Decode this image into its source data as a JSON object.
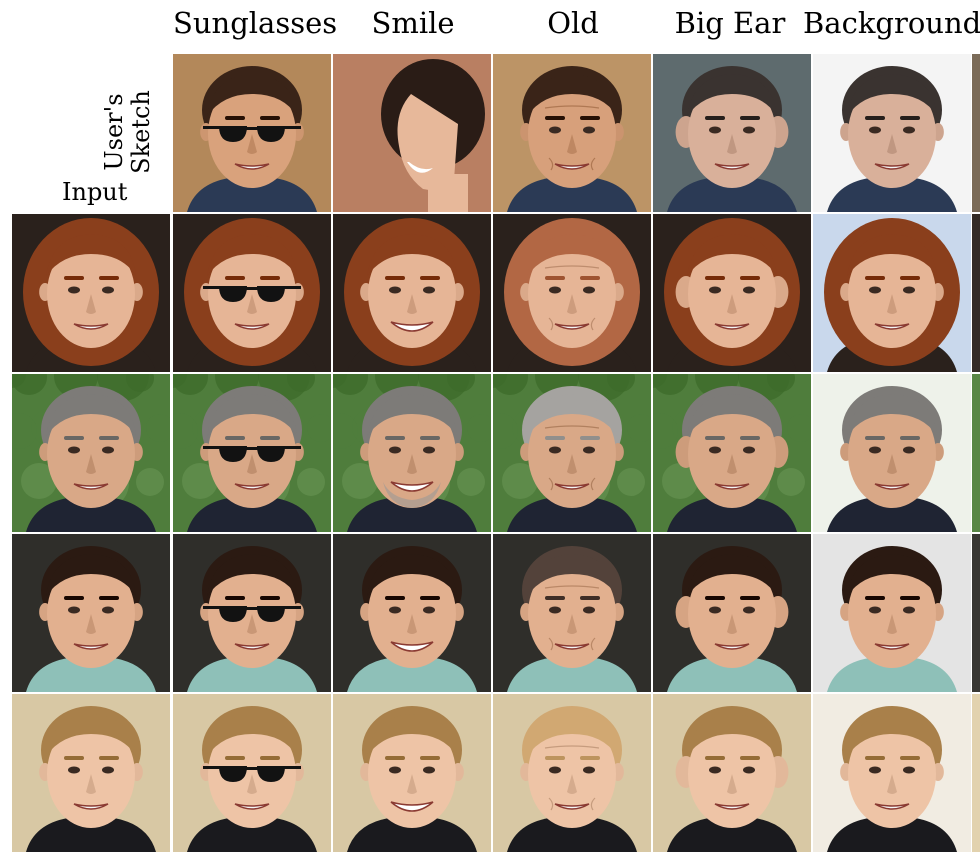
{
  "columns": [
    {
      "label": "Sunglasses",
      "center": 253
    },
    {
      "label": "Smile",
      "center": 412
    },
    {
      "label": "Old",
      "center": 570
    },
    {
      "label": "Big Ear",
      "center": 727
    },
    {
      "label": "Background",
      "center": 889
    }
  ],
  "row_labels": {
    "sketch": "User's\nSketch",
    "input": "Input"
  },
  "subjects": [
    {
      "id": "woman-red-hair",
      "skin": "#e6b596",
      "hair": "#8a3f1c",
      "bg": "#2a211c",
      "shirt": "#2a211c"
    },
    {
      "id": "man-gray-hair",
      "skin": "#d9a887",
      "hair": "#7d7b78",
      "bg": "#4f7d3c",
      "shirt": "#1f2433"
    },
    {
      "id": "young-man",
      "skin": "#e2b08f",
      "hair": "#2b1a12",
      "bg": "#2f2e2a",
      "shirt": "#8ec0b8"
    },
    {
      "id": "blonde-woman",
      "skin": "#eec4a6",
      "hair": "#a9804a",
      "bg": "#d8c8a4",
      "shirt": "#1a1a1e"
    }
  ],
  "sketch_subjects": [
    {
      "id": "sketch-sunglasses",
      "skin": "#d9a27c",
      "hair": "#3a2418",
      "bg": "#b3885a",
      "mark": "sunglasses"
    },
    {
      "id": "sketch-smile",
      "skin": "#e7b89a",
      "hair": "#2a1c16",
      "bg": "#b97f62",
      "mark": "smile"
    },
    {
      "id": "sketch-old",
      "skin": "#d7a07b",
      "hair": "#3a2418",
      "bg": "#bc9466",
      "mark": "wrinkles"
    },
    {
      "id": "sketch-bigear",
      "skin": "#d9b09a",
      "hair": "#3a3330",
      "bg": "#5e6b6e",
      "mark": "ears"
    },
    {
      "id": "sketch-background",
      "skin": "#d9b09a",
      "hair": "#3a3330",
      "bg": "#f4f4f4",
      "mark": "none"
    }
  ]
}
